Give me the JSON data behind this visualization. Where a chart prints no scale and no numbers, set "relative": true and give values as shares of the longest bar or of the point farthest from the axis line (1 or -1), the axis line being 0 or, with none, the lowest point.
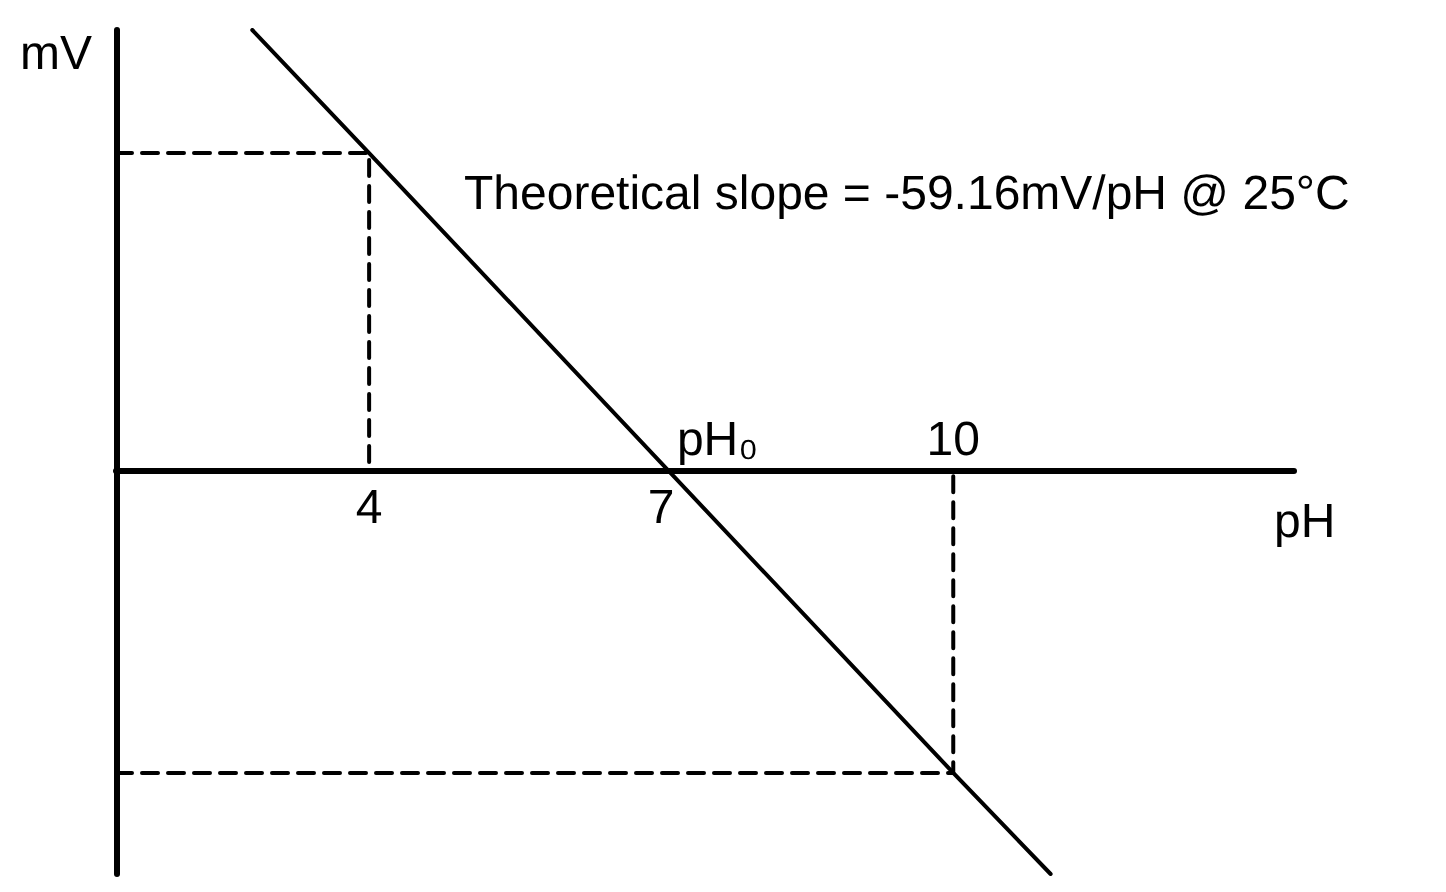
{
  "chart_data": {
    "type": "line",
    "relative": true,
    "xlabel": "pH",
    "ylabel": "mV",
    "marker": "none",
    "tick_labels": "x",
    "xlim": [
      1.4,
      13.5
    ],
    "xticks": [
      4,
      7
    ],
    "series": [
      {
        "color": "#000000",
        "x": [
          2.8,
          4,
          10,
          11
        ],
        "values": [
          1,
          0.72,
          -0.69,
          -0.92
        ]
      },
      {
        "color": "#000000",
        "line_style": "dashed",
        "x": [
          1.4,
          4,
          4
        ],
        "values": [
          0.72,
          0.72,
          0
        ]
      },
      {
        "color": "#000000",
        "line_style": "dashed",
        "x": [
          1.4,
          10,
          10
        ],
        "values": [
          -0.69,
          -0.69,
          0
        ]
      }
    ],
    "annotations": [
      "Theoretical slope = -59.16mV/pH @ 25°C",
      {
        "text": "pH₀",
        "x": 7.1,
        "y": 0
      },
      {
        "text": "10",
        "x": 10,
        "y": 0
      }
    ]
  }
}
